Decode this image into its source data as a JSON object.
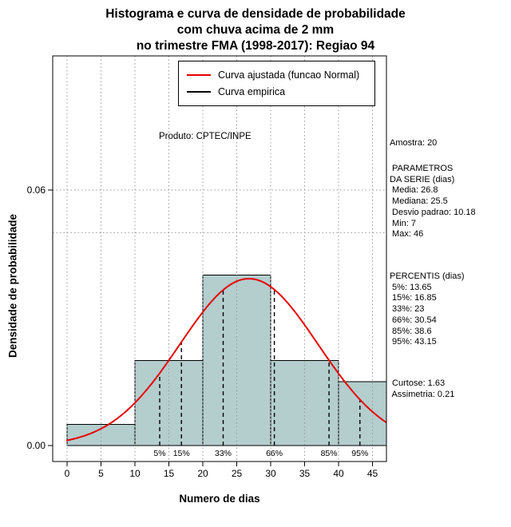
{
  "title": {
    "line1": "Histograma e curva de densidade de probabilidade",
    "line2": "com chuva acima de 2 mm",
    "line3": "no trimestre FMA (1998-2017): Regiao 94"
  },
  "inner_note": "Produto: CPTEC/INPE",
  "legend": {
    "entries": [
      {
        "label": "Curva ajustada (funcao Normal)",
        "color": "#e60000"
      },
      {
        "label": "Curva empirica",
        "color": "#000000"
      }
    ]
  },
  "annotations": {
    "groups": [
      [
        "Amostra: 20"
      ],
      [
        " PARAMETROS",
        "DA SERIE (dias)",
        " Media: 26.8",
        " Mediana: 25.5",
        " Desvio padrao: 10.18",
        " Min: 7",
        " Max: 46"
      ],
      [
        "PERCENTIS (dias)",
        " 5%: 13.65",
        " 15%: 16.85",
        " 33%: 23",
        " 66%: 30.54",
        " 85%: 38.6",
        " 95%: 43.15"
      ],
      [
        " Curtose: 1.63",
        " Assimetria: 0.21"
      ]
    ]
  },
  "chart_data": {
    "type": "histogram+density",
    "title": "Histograma e curva de densidade de probabilidade com chuva acima de 2 mm no trimestre FMA (1998-2017): Regiao 94",
    "xlabel": "Numero de dias",
    "ylabel": "Densidade de probabilidade",
    "xlim": [
      0,
      47
    ],
    "ylim": [
      0,
      0.06
    ],
    "x_ticks": [
      0,
      5,
      10,
      15,
      20,
      25,
      30,
      35,
      40,
      45
    ],
    "y_ticks": [
      {
        "value": 0,
        "label": "0.00"
      },
      {
        "value": 0.06,
        "label": "0.06"
      }
    ],
    "h_gridlines": [
      0.05,
      0.06
    ],
    "grid": true,
    "legend_position": "top",
    "histogram": {
      "bin_edges": [
        0,
        10,
        20,
        30,
        40,
        50
      ],
      "densities": [
        0.005,
        0.02,
        0.04,
        0.02,
        0.015
      ],
      "counts": [
        1,
        4,
        8,
        4,
        3
      ],
      "fill": "#b4cdcd",
      "stroke": "#000000"
    },
    "normal_curve": {
      "mean": 26.8,
      "sd": 10.18,
      "color": "#e60000"
    },
    "percentiles": [
      {
        "label": "5%",
        "x": 13.65
      },
      {
        "label": "15%",
        "x": 16.85
      },
      {
        "label": "33%",
        "x": 23
      },
      {
        "label": "66%",
        "x": 30.54
      },
      {
        "label": "85%",
        "x": 38.6
      },
      {
        "label": "95%",
        "x": 43.15
      }
    ],
    "sample_size": 20,
    "stats": {
      "media": 26.8,
      "mediana": 25.5,
      "desvio_padrao": 10.18,
      "min": 7,
      "max": 46,
      "curtose": 1.63,
      "assimetria": 0.21
    }
  }
}
